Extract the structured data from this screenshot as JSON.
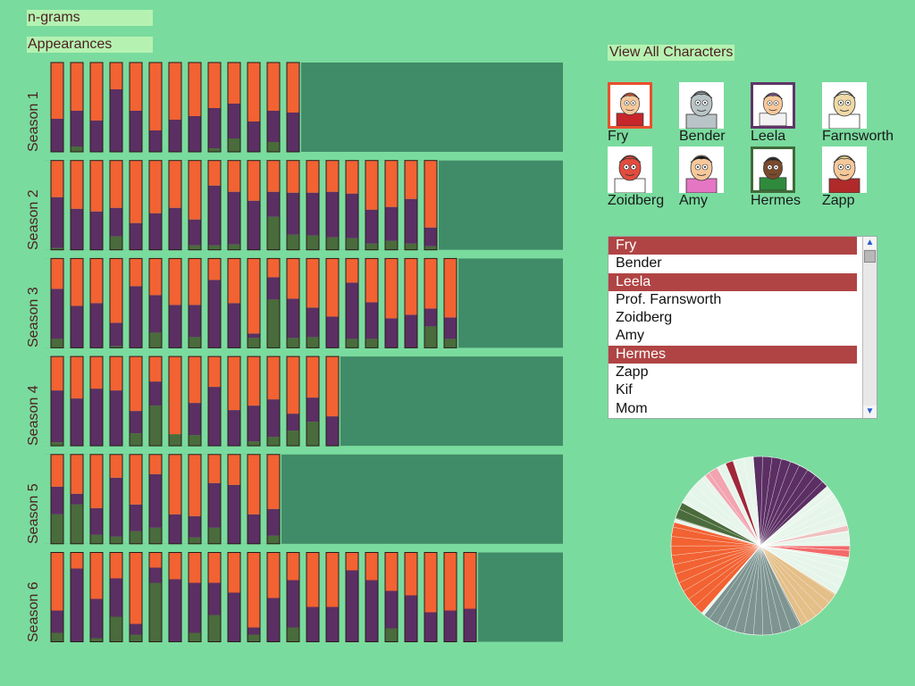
{
  "tabs": {
    "ngrams": "n-grams",
    "appearances": "Appearances"
  },
  "view_all": "View All Characters",
  "characters": [
    {
      "name": "Fry",
      "selected": true,
      "border": "#e8502e",
      "skin": "#f6c89a",
      "hair": "#e8502e",
      "shirt": "#c7262b"
    },
    {
      "name": "Bender",
      "selected": false,
      "border": "",
      "skin": "#b9c4c6",
      "hair": "#8a9799",
      "shirt": "#b9c4c6"
    },
    {
      "name": "Leela",
      "selected": true,
      "border": "#5e3567",
      "skin": "#f6c89a",
      "hair": "#7b4ea0",
      "shirt": "#f2f2f2"
    },
    {
      "name": "Farnsworth",
      "selected": false,
      "border": "",
      "skin": "#f0d9a6",
      "hair": "#ffffff",
      "shirt": "#ffffff"
    },
    {
      "name": "Zoidberg",
      "selected": false,
      "border": "",
      "skin": "#e34b3d",
      "hair": "#e34b3d",
      "shirt": "#ffffff"
    },
    {
      "name": "Amy",
      "selected": false,
      "border": "",
      "skin": "#f6c89a",
      "hair": "#111111",
      "shirt": "#e576c4"
    },
    {
      "name": "Hermes",
      "selected": true,
      "border": "#3f6b3a",
      "skin": "#7a4a2c",
      "hair": "#222222",
      "shirt": "#2f8a3c"
    },
    {
      "name": "Zapp",
      "selected": false,
      "border": "",
      "skin": "#f6c89a",
      "hair": "#f0e090",
      "shirt": "#b02a2a"
    }
  ],
  "list": {
    "items": [
      "Fry",
      "Bender",
      "Leela",
      "Prof. Farnsworth",
      "Zoidberg",
      "Amy",
      "Hermes",
      "Zapp",
      "Kif",
      "Mom"
    ],
    "selected": [
      "Fry",
      "Leela",
      "Hermes"
    ],
    "scroll_up": "▲",
    "scroll_down": "▼"
  },
  "colors": {
    "fry": "#f26232",
    "leela": "#5b2f63",
    "hermes": "#4a6b3b",
    "track": "#418c68",
    "slot": "#7adb9e",
    "outline": "#2a1a1a"
  },
  "chart_data": {
    "type": "bar",
    "stacking": "100% stacked per episode, bottom to top: Hermes, Leela, Fry",
    "series": [
      {
        "name": "Hermes"
      },
      {
        "name": "Leela"
      },
      {
        "name": "Fry"
      }
    ],
    "seasons": [
      {
        "label": "Season 1",
        "episodes": [
          [
            0.0,
            0.37,
            0.63
          ],
          [
            0.06,
            0.4,
            0.54
          ],
          [
            0.0,
            0.35,
            0.65
          ],
          [
            0.0,
            0.7,
            0.3
          ],
          [
            0.0,
            0.46,
            0.54
          ],
          [
            0.0,
            0.24,
            0.76
          ],
          [
            0.0,
            0.36,
            0.64
          ],
          [
            0.0,
            0.4,
            0.6
          ],
          [
            0.04,
            0.45,
            0.51
          ],
          [
            0.15,
            0.39,
            0.46
          ],
          [
            0.0,
            0.34,
            0.66
          ],
          [
            0.11,
            0.35,
            0.54
          ],
          [
            0.0,
            0.44,
            0.56
          ]
        ]
      },
      {
        "label": "Season 2",
        "episodes": [
          [
            0.02,
            0.57,
            0.41
          ],
          [
            0.0,
            0.46,
            0.54
          ],
          [
            0.0,
            0.43,
            0.57
          ],
          [
            0.15,
            0.32,
            0.53
          ],
          [
            0.0,
            0.3,
            0.7
          ],
          [
            0.0,
            0.41,
            0.59
          ],
          [
            0.0,
            0.47,
            0.53
          ],
          [
            0.05,
            0.29,
            0.66
          ],
          [
            0.05,
            0.67,
            0.28
          ],
          [
            0.06,
            0.59,
            0.35
          ],
          [
            0.0,
            0.55,
            0.45
          ],
          [
            0.37,
            0.28,
            0.35
          ],
          [
            0.17,
            0.47,
            0.36
          ],
          [
            0.16,
            0.48,
            0.36
          ],
          [
            0.14,
            0.51,
            0.35
          ],
          [
            0.13,
            0.5,
            0.37
          ],
          [
            0.07,
            0.38,
            0.55
          ],
          [
            0.1,
            0.38,
            0.52
          ],
          [
            0.07,
            0.5,
            0.43
          ],
          [
            0.04,
            0.21,
            0.75
          ]
        ]
      },
      {
        "label": "Season 3",
        "episodes": [
          [
            0.1,
            0.56,
            0.34
          ],
          [
            0.0,
            0.47,
            0.53
          ],
          [
            0.0,
            0.5,
            0.5
          ],
          [
            0.02,
            0.26,
            0.72
          ],
          [
            0.0,
            0.69,
            0.31
          ],
          [
            0.17,
            0.42,
            0.41
          ],
          [
            0.0,
            0.48,
            0.52
          ],
          [
            0.12,
            0.36,
            0.52
          ],
          [
            0.0,
            0.76,
            0.24
          ],
          [
            0.0,
            0.5,
            0.5
          ],
          [
            0.11,
            0.05,
            0.84
          ],
          [
            0.54,
            0.25,
            0.21
          ],
          [
            0.11,
            0.44,
            0.45
          ],
          [
            0.12,
            0.33,
            0.55
          ],
          [
            0.0,
            0.35,
            0.65
          ],
          [
            0.1,
            0.63,
            0.27
          ],
          [
            0.1,
            0.41,
            0.49
          ],
          [
            0.0,
            0.33,
            0.67
          ],
          [
            0.0,
            0.37,
            0.63
          ],
          [
            0.24,
            0.2,
            0.56
          ],
          [
            0.1,
            0.24,
            0.66
          ]
        ]
      },
      {
        "label": "Season 4",
        "episodes": [
          [
            0.04,
            0.58,
            0.38
          ],
          [
            0.0,
            0.53,
            0.47
          ],
          [
            0.0,
            0.64,
            0.36
          ],
          [
            0.0,
            0.62,
            0.38
          ],
          [
            0.14,
            0.25,
            0.61
          ],
          [
            0.45,
            0.27,
            0.28
          ],
          [
            0.13,
            0.0,
            0.87
          ],
          [
            0.12,
            0.36,
            0.52
          ],
          [
            0.0,
            0.66,
            0.34
          ],
          [
            0.0,
            0.4,
            0.6
          ],
          [
            0.05,
            0.4,
            0.55
          ],
          [
            0.1,
            0.42,
            0.48
          ],
          [
            0.17,
            0.19,
            0.64
          ],
          [
            0.27,
            0.27,
            0.46
          ],
          [
            0.0,
            0.33,
            0.67
          ]
        ]
      },
      {
        "label": "Season 5",
        "episodes": [
          [
            0.33,
            0.31,
            0.36
          ],
          [
            0.44,
            0.12,
            0.44
          ],
          [
            0.1,
            0.3,
            0.6
          ],
          [
            0.08,
            0.66,
            0.26
          ],
          [
            0.14,
            0.3,
            0.56
          ],
          [
            0.18,
            0.6,
            0.22
          ],
          [
            0.0,
            0.33,
            0.67
          ],
          [
            0.07,
            0.24,
            0.69
          ],
          [
            0.18,
            0.5,
            0.32
          ],
          [
            0.0,
            0.66,
            0.34
          ],
          [
            0.0,
            0.33,
            0.67
          ],
          [
            0.09,
            0.3,
            0.61
          ]
        ]
      },
      {
        "label": "Season 6",
        "episodes": [
          [
            0.1,
            0.25,
            0.65
          ],
          [
            0.0,
            0.82,
            0.18
          ],
          [
            0.04,
            0.44,
            0.52
          ],
          [
            0.28,
            0.43,
            0.29
          ],
          [
            0.08,
            0.12,
            0.8
          ],
          [
            0.66,
            0.17,
            0.17
          ],
          [
            0.0,
            0.7,
            0.3
          ],
          [
            0.1,
            0.56,
            0.34
          ],
          [
            0.3,
            0.36,
            0.34
          ],
          [
            0.0,
            0.55,
            0.45
          ],
          [
            0.08,
            0.08,
            0.84
          ],
          [
            0.0,
            0.49,
            0.51
          ],
          [
            0.16,
            0.53,
            0.31
          ],
          [
            0.0,
            0.39,
            0.61
          ],
          [
            0.0,
            0.39,
            0.61
          ],
          [
            0.0,
            0.8,
            0.2
          ],
          [
            0.0,
            0.69,
            0.31
          ],
          [
            0.15,
            0.42,
            0.43
          ],
          [
            0.0,
            0.52,
            0.48
          ],
          [
            0.0,
            0.33,
            0.67
          ],
          [
            0.0,
            0.35,
            0.65
          ],
          [
            0.0,
            0.37,
            0.63
          ]
        ]
      }
    ],
    "max_episodes": 26,
    "pie": {
      "type": "pie",
      "start_angle_deg": 0,
      "slices": [
        {
          "value": 2.0,
          "color": "#f26a6a"
        },
        {
          "value": 0.6,
          "color": "#d7f0e0"
        },
        {
          "value": 6.0,
          "color": "#e6f5ea"
        },
        {
          "value": 8.0,
          "color": "#e4bf88"
        },
        {
          "value": 17.5,
          "color": "#7d9490"
        },
        {
          "value": 0.5,
          "color": "#e6f5ea"
        },
        {
          "value": 17.0,
          "color": "#f26232"
        },
        {
          "value": 0.6,
          "color": "#e6f5ea"
        },
        {
          "value": 3.0,
          "color": "#4a6b3b"
        },
        {
          "value": 6.0,
          "color": "#e6f5ea"
        },
        {
          "value": 2.5,
          "color": "#f2a4b0"
        },
        {
          "value": 1.5,
          "color": "#e6f5ea"
        },
        {
          "value": 1.4,
          "color": "#a0283a"
        },
        {
          "value": 3.5,
          "color": "#e6f5ea"
        },
        {
          "value": 14.0,
          "color": "#5b2f63"
        },
        {
          "value": 1.5,
          "color": "#e6f5ea"
        },
        {
          "value": 6.0,
          "color": "#e6f5ea"
        },
        {
          "value": 1.0,
          "color": "#f0c0c0"
        },
        {
          "value": 2.5,
          "color": "#e6f5ea"
        }
      ]
    }
  }
}
